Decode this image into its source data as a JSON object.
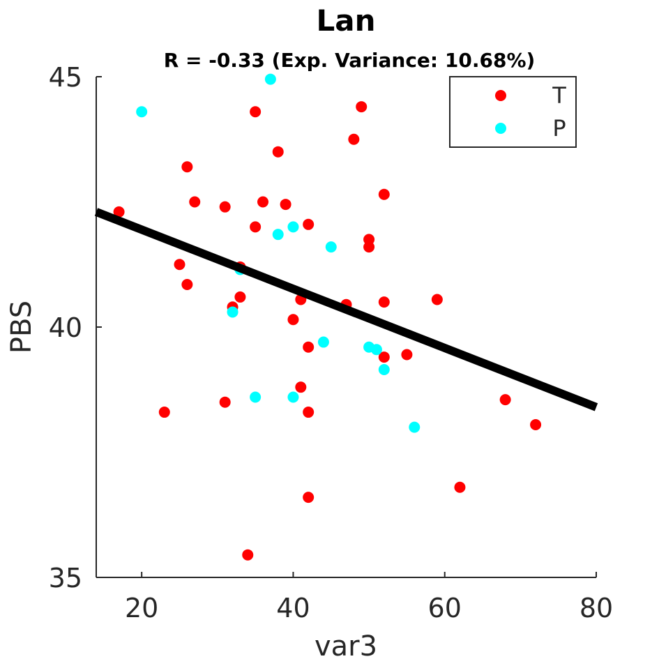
{
  "chart_data": {
    "type": "scatter",
    "title": "Lan",
    "subtitle": "R = -0.33 (Exp. Variance: 10.68%)",
    "xlabel": "var3",
    "ylabel": "PBS",
    "xlim": [
      14,
      80
    ],
    "ylim": [
      35,
      45
    ],
    "xticks": [
      20,
      40,
      60,
      80
    ],
    "yticks": [
      35,
      40,
      45
    ],
    "xtick_labels": [
      "20",
      "40",
      "60",
      "80"
    ],
    "ytick_labels": [
      "35",
      "40",
      "45"
    ],
    "grid": false,
    "legend_position": "top-right",
    "series": [
      {
        "name": "T",
        "color": "#ff0000",
        "points": [
          [
            17,
            42.3
          ],
          [
            23,
            38.3
          ],
          [
            25,
            41.25
          ],
          [
            26,
            43.2
          ],
          [
            26,
            40.85
          ],
          [
            27,
            42.5
          ],
          [
            31,
            42.4
          ],
          [
            31,
            38.5
          ],
          [
            32,
            40.4
          ],
          [
            33,
            41.2
          ],
          [
            33,
            40.6
          ],
          [
            34,
            35.45
          ],
          [
            35,
            44.3
          ],
          [
            35,
            42.0
          ],
          [
            36,
            42.5
          ],
          [
            38,
            43.5
          ],
          [
            39,
            42.45
          ],
          [
            40,
            40.15
          ],
          [
            41,
            40.55
          ],
          [
            41,
            38.8
          ],
          [
            42,
            42.05
          ],
          [
            42,
            39.6
          ],
          [
            42,
            38.3
          ],
          [
            42,
            36.6
          ],
          [
            47,
            40.45
          ],
          [
            48,
            43.75
          ],
          [
            49,
            44.4
          ],
          [
            50,
            41.75
          ],
          [
            50,
            41.6
          ],
          [
            52,
            42.65
          ],
          [
            52,
            40.5
          ],
          [
            52,
            39.4
          ],
          [
            55,
            39.45
          ],
          [
            59,
            40.55
          ],
          [
            62,
            36.8
          ],
          [
            68,
            38.55
          ],
          [
            72,
            38.05
          ]
        ]
      },
      {
        "name": "P",
        "color": "#00ffff",
        "points": [
          [
            20,
            44.3
          ],
          [
            32,
            40.3
          ],
          [
            33,
            41.15
          ],
          [
            35,
            38.6
          ],
          [
            37,
            44.95
          ],
          [
            38,
            41.85
          ],
          [
            40,
            42.0
          ],
          [
            40,
            38.6
          ],
          [
            44,
            39.7
          ],
          [
            45,
            41.6
          ],
          [
            50,
            39.6
          ],
          [
            51,
            39.55
          ],
          [
            52,
            39.15
          ],
          [
            56,
            38.0
          ]
        ]
      }
    ],
    "fit_line": {
      "x": [
        14,
        80
      ],
      "y": [
        42.3,
        38.4
      ],
      "color": "#000000"
    }
  }
}
